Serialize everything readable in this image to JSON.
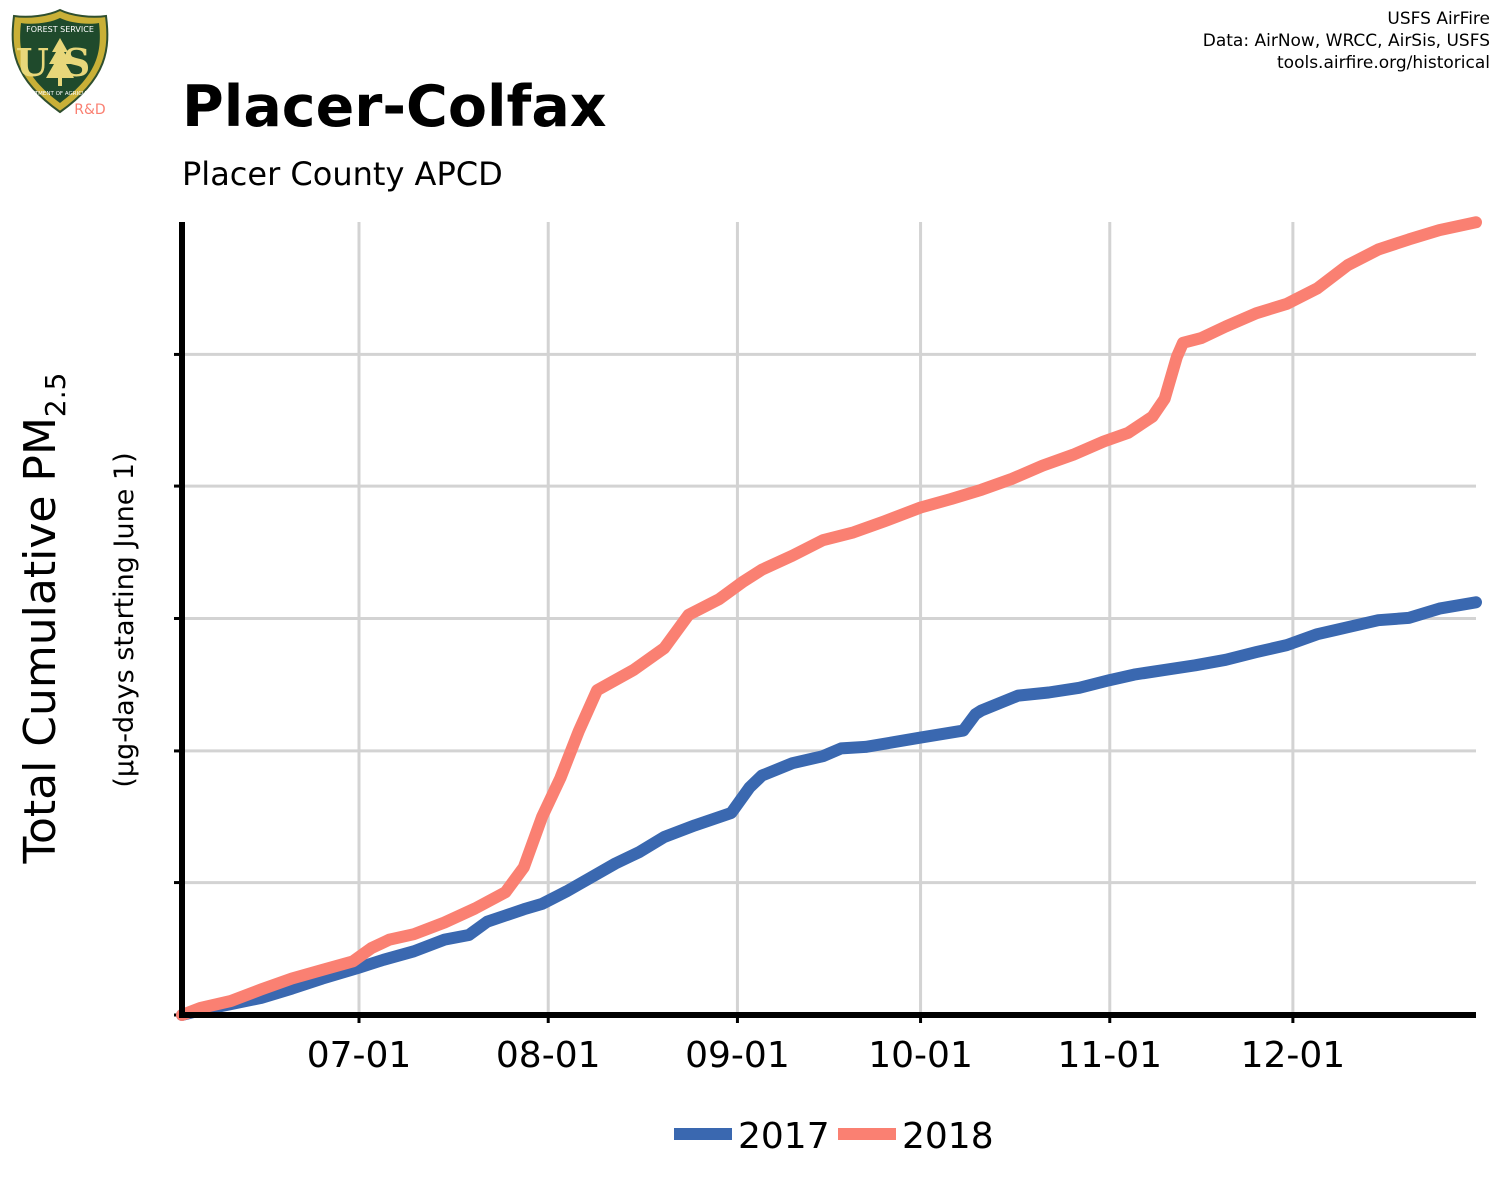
{
  "header": {
    "title": "Placer-Colfax",
    "subtitle": "Placer County APCD",
    "credits": [
      "USFS AirFire",
      "Data: AirNow, WRCC, AirSis, USFS",
      "tools.airfire.org/historical"
    ],
    "logo": {
      "name": "usfs-shield-logo",
      "text_top": "FOREST SERVICE",
      "text_main": "US",
      "text_bottom": "DEPARTMENT OF AGRICULTURE",
      "badge": "R&D"
    }
  },
  "colors": {
    "2017": "#3a68b0",
    "2018": "#fa8072",
    "grid": "#d3d3d3",
    "axis": "#000000"
  },
  "chart_data": {
    "type": "line",
    "title": "Placer-Colfax",
    "subtitle": "Placer County APCD",
    "ylabel_main": "Total Cumulative PM",
    "ylabel_sub": "2.5",
    "ylabel2": "(µg-days starting June 1)",
    "xlabel": "",
    "x_ticks": [
      "07-01",
      "08-01",
      "09-01",
      "10-01",
      "11-01",
      "12-01"
    ],
    "x_tick_dates": [
      "2000-07-01",
      "2000-08-01",
      "2000-09-01",
      "2000-10-01",
      "2000-11-01",
      "2000-12-01"
    ],
    "xlim": [
      "2000-06-02",
      "2000-12-31"
    ],
    "ylim": [
      0,
      1
    ],
    "y_tick_labels_shown": false,
    "y_tick_fractions": [
      0,
      0.167,
      0.333,
      0.5,
      0.667,
      0.833
    ],
    "grid": true,
    "legend_position": "bottom-center",
    "series": [
      {
        "name": "2017",
        "x": [
          "2000-06-02",
          "2000-06-05",
          "2000-06-10",
          "2000-06-15",
          "2000-06-20",
          "2000-06-25",
          "2000-07-01",
          "2000-07-05",
          "2000-07-10",
          "2000-07-15",
          "2000-07-19",
          "2000-07-22",
          "2000-07-25",
          "2000-07-28",
          "2000-07-31",
          "2000-08-04",
          "2000-08-08",
          "2000-08-12",
          "2000-08-16",
          "2000-08-20",
          "2000-08-25",
          "2000-08-31",
          "2000-09-03",
          "2000-09-05",
          "2000-09-10",
          "2000-09-15",
          "2000-09-18",
          "2000-09-22",
          "2000-10-01",
          "2000-10-08",
          "2000-10-10",
          "2000-10-11",
          "2000-10-17",
          "2000-10-22",
          "2000-10-27",
          "2000-11-01",
          "2000-11-05",
          "2000-11-10",
          "2000-11-15",
          "2000-11-20",
          "2000-11-25",
          "2000-11-30",
          "2000-12-05",
          "2000-12-10",
          "2000-12-15",
          "2000-12-20",
          "2000-12-25",
          "2000-12-31"
        ],
        "values": [
          0.0,
          0.006,
          0.014,
          0.022,
          0.034,
          0.047,
          0.061,
          0.071,
          0.082,
          0.097,
          0.103,
          0.12,
          0.128,
          0.136,
          0.143,
          0.159,
          0.177,
          0.195,
          0.21,
          0.229,
          0.244,
          0.26,
          0.293,
          0.308,
          0.324,
          0.333,
          0.343,
          0.345,
          0.357,
          0.366,
          0.387,
          0.392,
          0.411,
          0.415,
          0.421,
          0.431,
          0.438,
          0.444,
          0.45,
          0.457,
          0.467,
          0.476,
          0.49,
          0.499,
          0.508,
          0.511,
          0.523,
          0.531
        ]
      },
      {
        "name": "2018",
        "x": [
          "2000-06-02",
          "2000-06-05",
          "2000-06-10",
          "2000-06-15",
          "2000-06-20",
          "2000-06-25",
          "2000-06-30",
          "2000-07-03",
          "2000-07-06",
          "2000-07-10",
          "2000-07-15",
          "2000-07-20",
          "2000-07-25",
          "2000-07-28",
          "2000-07-31",
          "2000-08-03",
          "2000-08-06",
          "2000-08-09",
          "2000-08-15",
          "2000-08-20",
          "2000-08-24",
          "2000-08-29",
          "2000-09-02",
          "2000-09-05",
          "2000-09-10",
          "2000-09-15",
          "2000-09-20",
          "2000-09-25",
          "2000-10-01",
          "2000-10-06",
          "2000-10-11",
          "2000-10-16",
          "2000-10-21",
          "2000-10-26",
          "2000-10-31",
          "2000-11-04",
          "2000-11-08",
          "2000-11-10",
          "2000-11-12",
          "2000-11-13",
          "2000-11-16",
          "2000-11-20",
          "2000-11-25",
          "2000-11-30",
          "2000-12-05",
          "2000-12-10",
          "2000-12-15",
          "2000-12-20",
          "2000-12-25",
          "2000-12-31"
        ],
        "values": [
          0.0,
          0.009,
          0.018,
          0.033,
          0.047,
          0.058,
          0.069,
          0.086,
          0.097,
          0.104,
          0.119,
          0.137,
          0.158,
          0.19,
          0.255,
          0.305,
          0.365,
          0.418,
          0.444,
          0.472,
          0.515,
          0.535,
          0.558,
          0.573,
          0.591,
          0.611,
          0.621,
          0.635,
          0.653,
          0.664,
          0.676,
          0.69,
          0.707,
          0.721,
          0.738,
          0.749,
          0.77,
          0.793,
          0.847,
          0.865,
          0.871,
          0.886,
          0.903,
          0.915,
          0.935,
          0.965,
          0.985,
          0.998,
          1.01,
          1.02
        ]
      }
    ]
  }
}
